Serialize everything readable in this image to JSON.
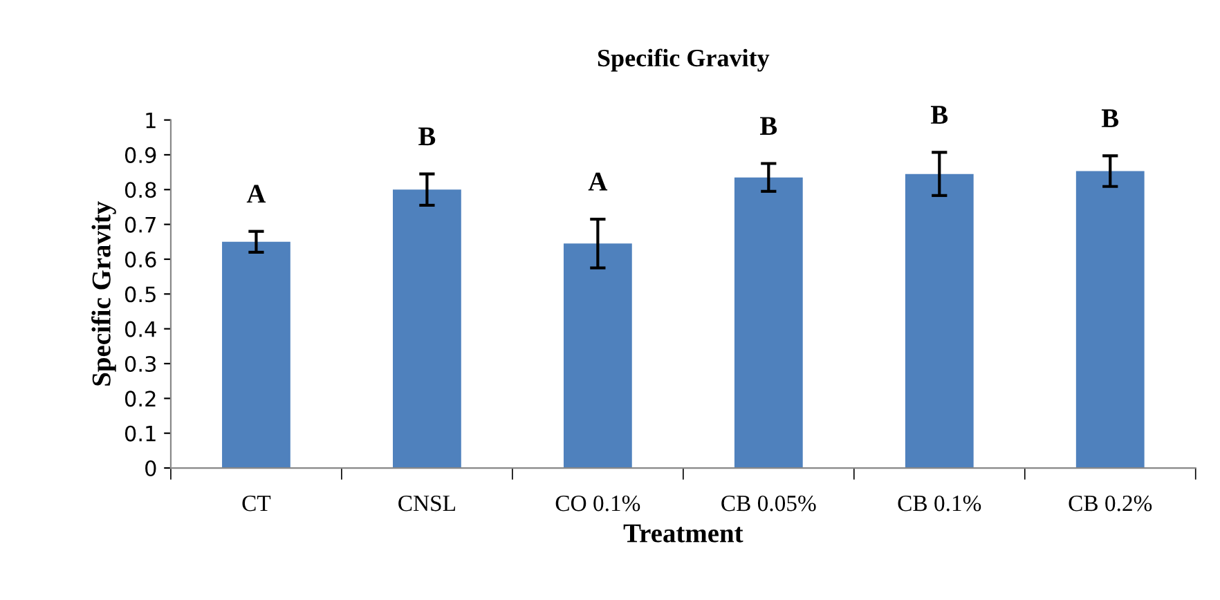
{
  "chart_data": {
    "type": "bar",
    "title": "Specific Gravity",
    "xlabel": "Treatment",
    "ylabel": "Specific Gravity",
    "categories": [
      "CT",
      "CNSL",
      "CO 0.1%",
      "CB 0.05%",
      "CB 0.1%",
      "CB 0.2%"
    ],
    "series": [
      {
        "color": "#4f81bd",
        "values": [
          0.65,
          0.8,
          0.645,
          0.835,
          0.845,
          0.853
        ],
        "errors": [
          0.03,
          0.045,
          0.07,
          0.04,
          0.062,
          0.044
        ]
      }
    ],
    "ylim": [
      0,
      1
    ],
    "yticks": [
      0,
      0.1,
      0.2,
      0.3,
      0.4,
      0.5,
      0.6,
      0.7,
      0.8,
      0.9,
      1
    ],
    "grid": false,
    "legend": false,
    "annotations": [
      {
        "text": "A",
        "x": "CT",
        "y": 0.68
      },
      {
        "text": "B",
        "x": "CNSL",
        "y": 0.845
      },
      {
        "text": "A",
        "x": "CO 0.1%",
        "y": 0.715
      },
      {
        "text": "B",
        "x": "CB 0.05%",
        "y": 0.875
      },
      {
        "text": "B",
        "x": "CB 0.1%",
        "y": 0.907
      },
      {
        "text": "B",
        "x": "CB 0.2%",
        "y": 0.897
      }
    ]
  }
}
